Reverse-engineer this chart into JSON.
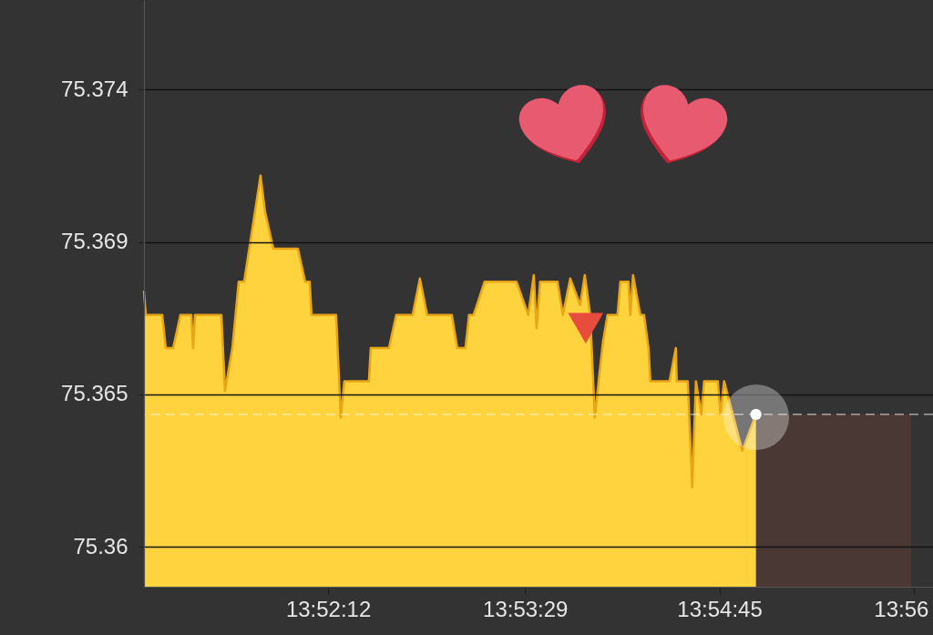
{
  "chart_data": {
    "type": "area",
    "xlim": [
      13.85,
      13.9357
    ],
    "xticks": [
      {
        "value": 13.87,
        "label": "13:52:12"
      },
      {
        "value": 13.89139,
        "label": "13:53:29"
      },
      {
        "value": 13.9125,
        "label": "13:54:45"
      },
      {
        "value": 13.93361,
        "label": "13:56"
      }
    ],
    "ylim": [
      75.3588,
      75.3765
    ],
    "yticks": [
      75.36,
      {
        "value": 75.3646,
        "label": "75.365"
      },
      {
        "value": 75.3692,
        "label": "75.369"
      },
      {
        "value": 75.3738,
        "label": "75.374"
      }
    ],
    "grid": "y",
    "series": [
      {
        "color": "#ffd33d",
        "x": [
          13.85,
          13.8502,
          13.85198,
          13.85237,
          13.85317,
          13.85396,
          13.85514,
          13.85534,
          13.85554,
          13.85841,
          13.8588,
          13.8596,
          13.86029,
          13.86088,
          13.86266,
          13.86316,
          13.86405,
          13.86672,
          13.86751,
          13.868,
          13.8682,
          13.87087,
          13.87137,
          13.87176,
          13.87443,
          13.87463,
          13.87661,
          13.8774,
          13.87918,
          13.87997,
          13.88076,
          13.88344,
          13.88403,
          13.88492,
          13.88531,
          13.88581,
          13.887,
          13.89046,
          13.89174,
          13.89234,
          13.89264,
          13.89303,
          13.89491,
          13.8955,
          13.8963,
          13.89738,
          13.89788,
          13.89847,
          13.89897,
          13.89946,
          13.89986,
          13.90035,
          13.90144,
          13.90174,
          13.90263,
          13.90282,
          13.90312,
          13.90391,
          13.90431,
          13.9048,
          13.905,
          13.90708,
          13.90777,
          13.90787,
          13.90906,
          13.90955,
          13.90995,
          13.91054,
          13.91084,
          13.91232,
          13.91262,
          13.91301,
          13.91499,
          13.91647
        ],
        "values": [
          75.3677,
          75.367,
          75.367,
          75.366,
          75.366,
          75.367,
          75.367,
          75.366,
          75.367,
          75.367,
          75.3647,
          75.366,
          75.368,
          75.368,
          75.3712,
          75.3701,
          75.369,
          75.369,
          75.368,
          75.368,
          75.367,
          75.367,
          75.3639,
          75.365,
          75.365,
          75.366,
          75.366,
          75.367,
          75.367,
          75.3681,
          75.367,
          75.367,
          75.366,
          75.366,
          75.367,
          75.367,
          75.368,
          75.368,
          75.367,
          75.3682,
          75.3666,
          75.368,
          75.368,
          75.367,
          75.3681,
          75.3673,
          75.3682,
          75.367,
          75.3639,
          75.3652,
          75.3662,
          75.367,
          75.367,
          75.368,
          75.368,
          75.367,
          75.3682,
          75.367,
          75.367,
          75.366,
          75.365,
          75.365,
          75.366,
          75.365,
          75.365,
          75.3618,
          75.365,
          75.364,
          75.365,
          75.365,
          75.364,
          75.365,
          75.3629,
          75.364
        ]
      },
      {
        "type": "scatter",
        "color": "#e84c3d",
        "marker": "triangle",
        "x": [
          13.89798
        ],
        "values": [
          75.3666
        ]
      },
      {
        "type": "scatter",
        "color": "#ffffff",
        "marker": "circle",
        "x": [
          13.91647
        ],
        "values": [
          75.364
        ]
      }
    ],
    "ref_lines": [
      {
        "axis": "y",
        "value": 75.364,
        "color": "#ffffff",
        "line_style": "dashed"
      }
    ],
    "bands": [
      {
        "axis": "x",
        "from": 13.91647,
        "to": 13.93333,
        "color": "#4a3834"
      }
    ]
  }
}
